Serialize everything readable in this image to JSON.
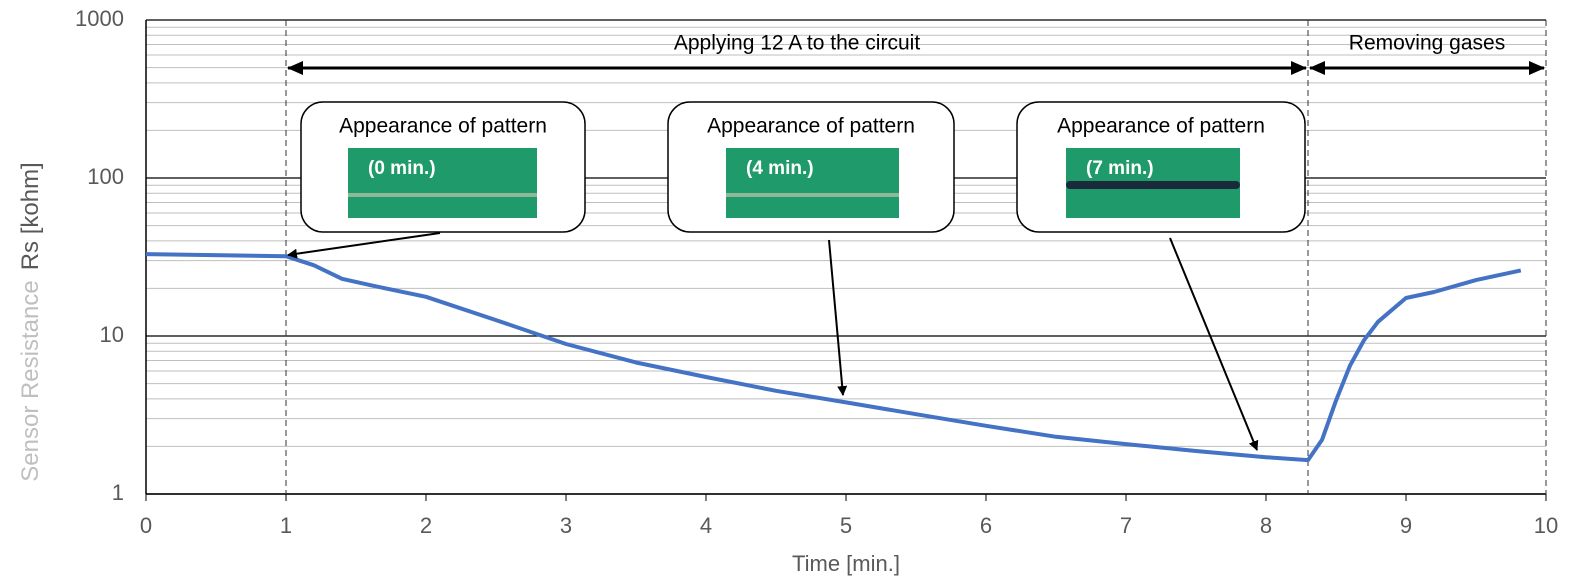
{
  "chart_data": {
    "type": "line",
    "xlabel": "Time [min.]",
    "ylabel": "Sensor Resistance",
    "ylabel_unit": "Rs [kohm]",
    "x": [
      0,
      1,
      1.2,
      1.4,
      1.6,
      2,
      2.5,
      3,
      3.5,
      4,
      4.5,
      5,
      5.5,
      6,
      6.5,
      7,
      7.5,
      8,
      8.3,
      8.4,
      8.5,
      8.6,
      8.7,
      8.8,
      9,
      9.2,
      9.5,
      9.82
    ],
    "values": [
      33,
      32,
      28,
      23,
      21,
      17.7,
      12.6,
      8.9,
      6.8,
      5.5,
      4.5,
      3.8,
      3.2,
      2.7,
      2.3,
      2.07,
      1.87,
      1.71,
      1.64,
      2.2,
      3.9,
      6.5,
      9.4,
      12.3,
      17.4,
      19,
      22.6,
      26
    ],
    "color": "#4472c4",
    "xlim": [
      0,
      10
    ],
    "xticks": [
      0,
      1,
      2,
      3,
      4,
      5,
      6,
      7,
      8,
      9,
      10
    ],
    "ylim": [
      1,
      1000
    ],
    "yticks": [
      1,
      10,
      100,
      1000
    ],
    "log_y": true,
    "grid": true,
    "spans": [
      {
        "text": "Applying 12 A to the circuit",
        "x": [
          1,
          8.3
        ]
      },
      {
        "text": "Removing gases",
        "x": [
          8.3,
          10
        ]
      }
    ],
    "annotations": [
      {
        "text": "Appearance of pattern",
        "label": "(0 min.)"
      },
      {
        "text": "Appearance of pattern",
        "label": "(4 min.)"
      },
      {
        "text": "Appearance of pattern",
        "label": "(7 min.)"
      }
    ]
  }
}
